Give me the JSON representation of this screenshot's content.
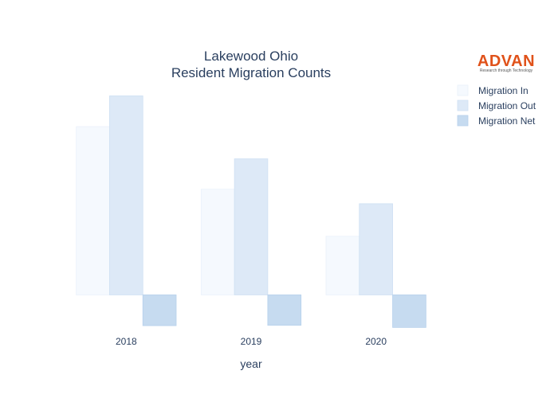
{
  "logo": {
    "word": "ADVAN",
    "tagline": "Research through Technology"
  },
  "chart_data": {
    "type": "bar",
    "title": "Lakewood Ohio",
    "subtitle": "Resident Migration Counts",
    "xlabel": "year",
    "ylabel": "",
    "categories": [
      "2018",
      "2019",
      "2020"
    ],
    "series": [
      {
        "name": "Migration In",
        "values": [
          4650,
          2920,
          1620
        ],
        "color": "#f5f9fe",
        "stroke": "#eaf1fb"
      },
      {
        "name": "Migration Out",
        "values": [
          5500,
          3760,
          2520
        ],
        "color": "#dde9f7",
        "stroke": "#cfe0f3"
      },
      {
        "name": "Migration Net",
        "values": [
          -850,
          -840,
          -900
        ],
        "color": "#c6dbf0",
        "stroke": "#b7d1ec"
      }
    ],
    "ylim": [
      -1090,
      5950
    ],
    "grid": false,
    "y_ticks_shown": false,
    "legend_position": "top-right"
  }
}
